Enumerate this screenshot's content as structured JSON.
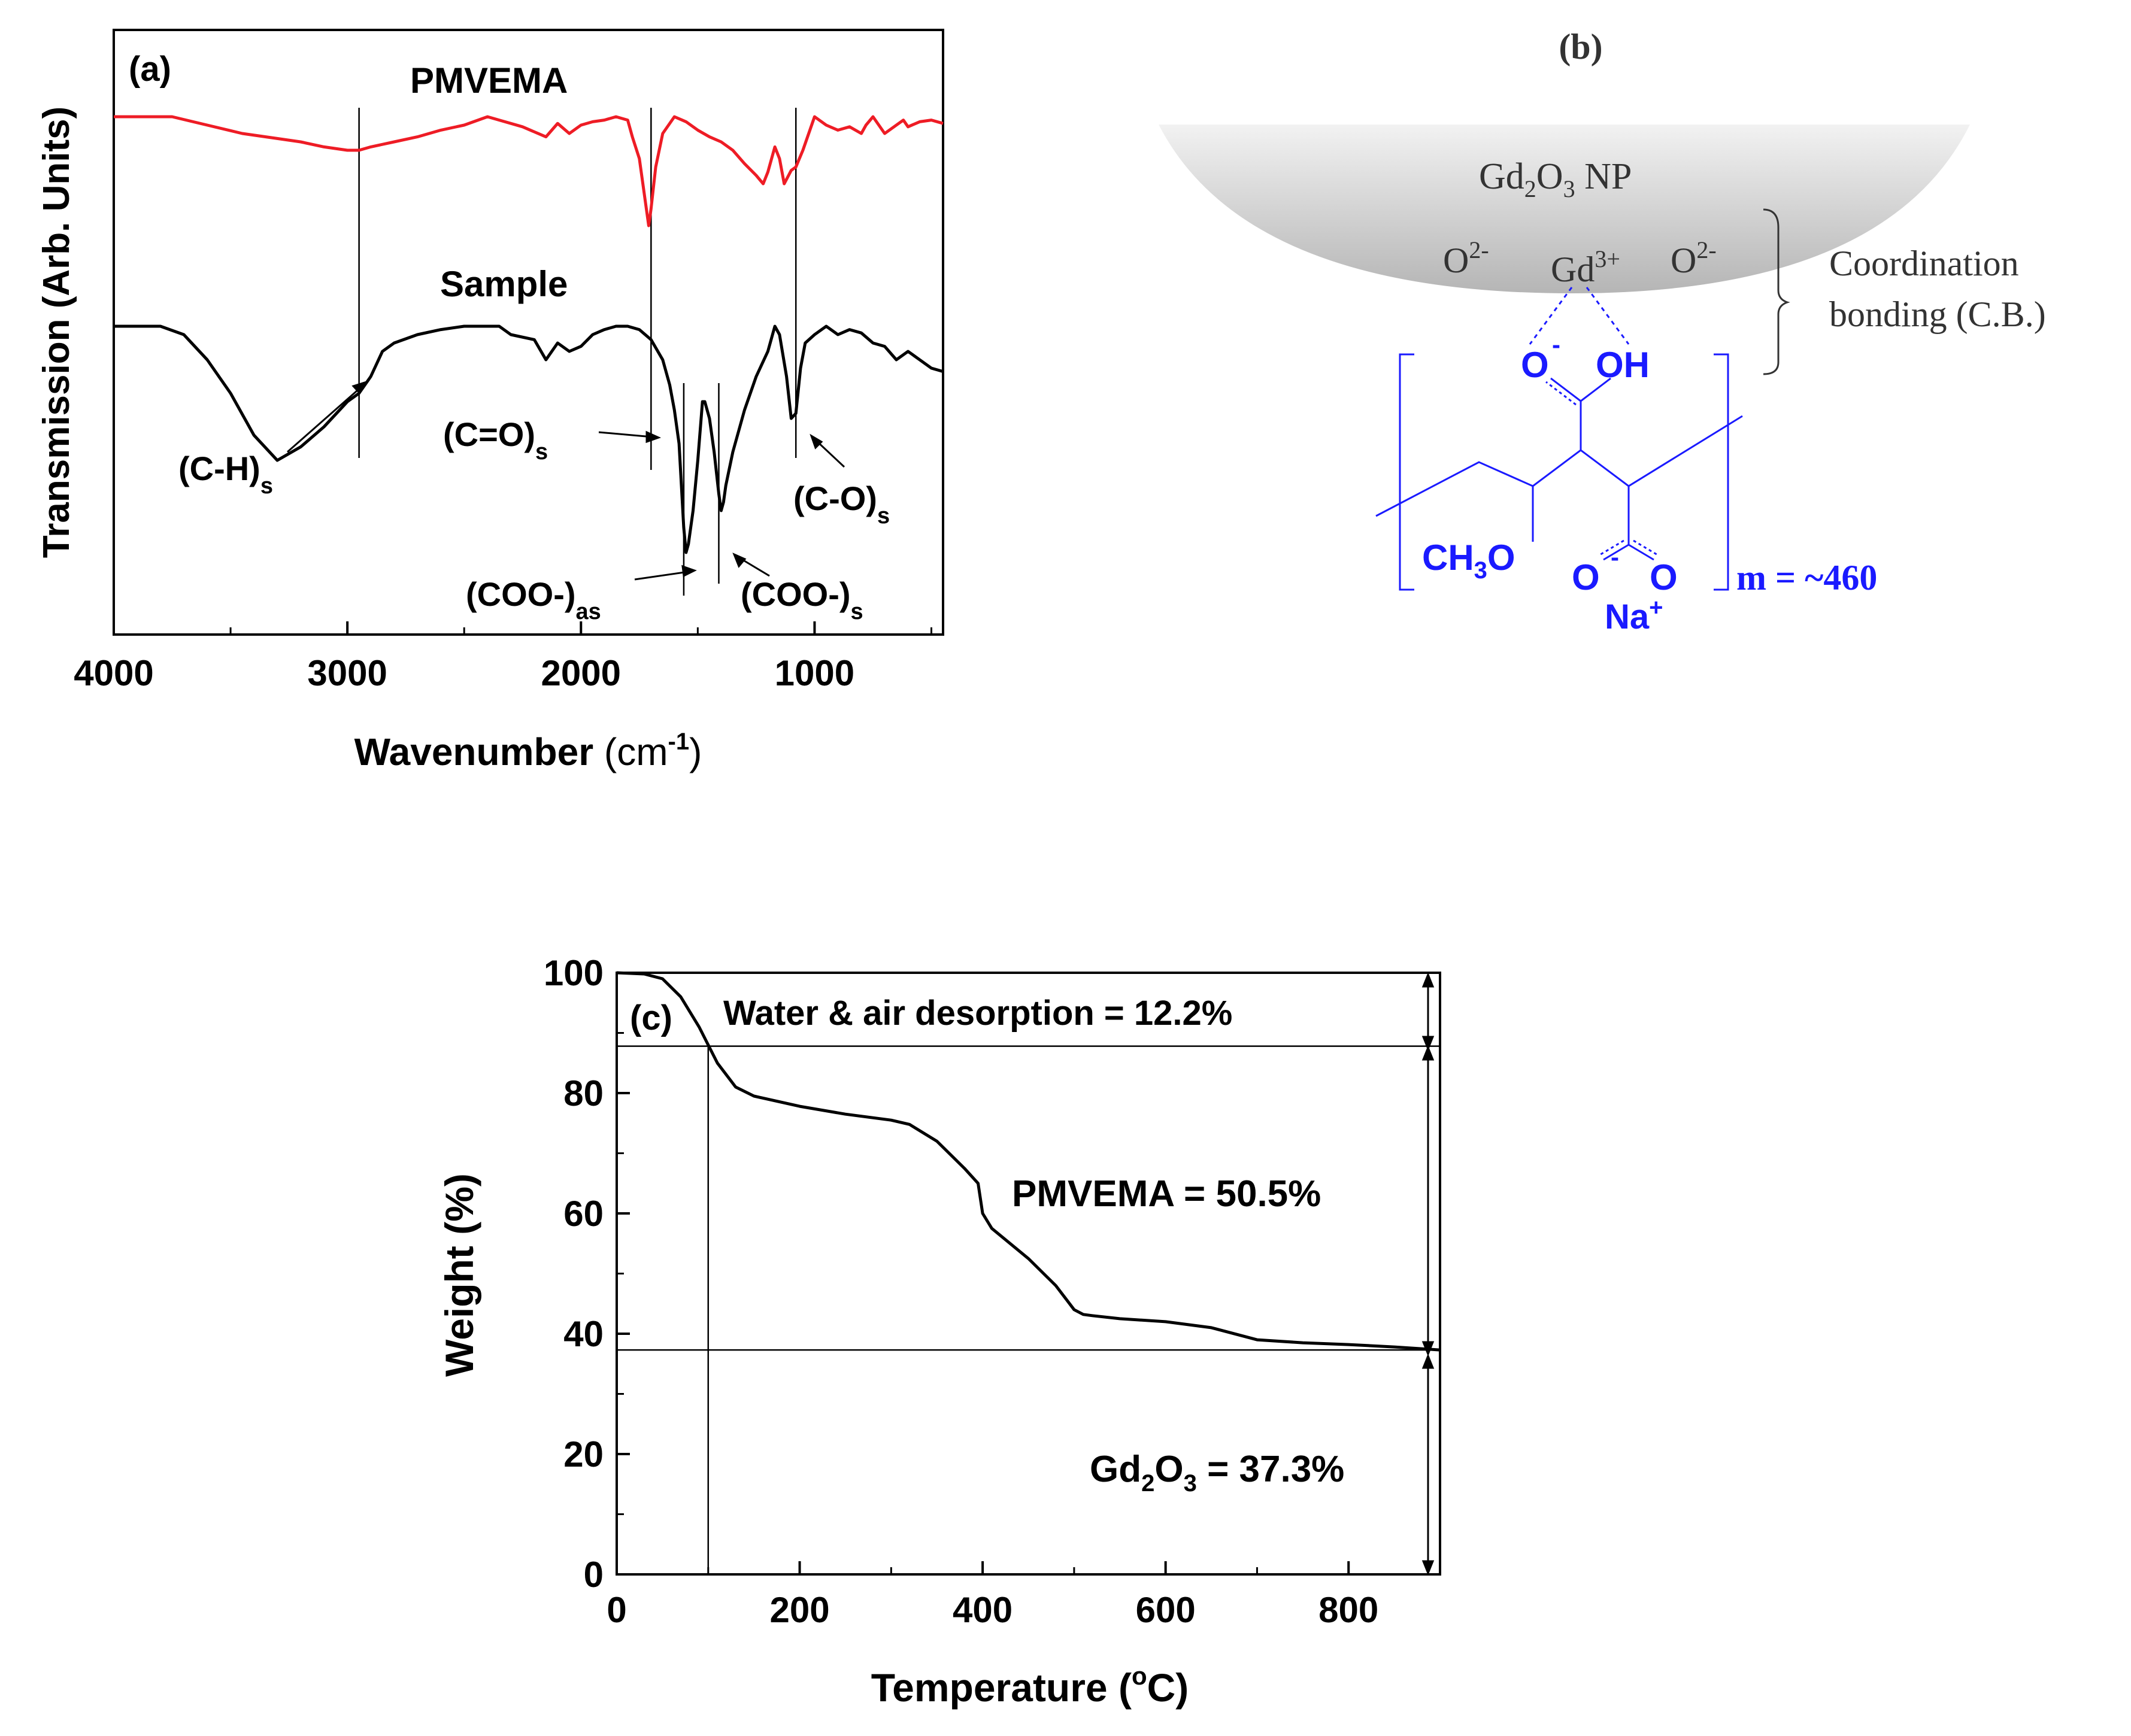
{
  "chart_data": [
    {
      "type": "line",
      "panel": "(a)",
      "xlabel": "Wavenumber",
      "xlabel_unit": "(cm",
      "xlabel_unit_sup": "-1",
      "xlabel_unit_close": ")",
      "ylabel": "Transmission (Arb. Units)",
      "xlim": [
        4000,
        450
      ],
      "xticks": [
        "4000",
        "3000",
        "2000",
        "1000"
      ],
      "xtick_values": [
        4000,
        3000,
        2000,
        1000
      ],
      "series": [
        {
          "name": "PMVEMA",
          "color": "#ee1c25",
          "x": [
            4000,
            3750,
            3600,
            3450,
            3300,
            3200,
            3100,
            3000,
            2950,
            2900,
            2800,
            2700,
            2600,
            2500,
            2400,
            2350,
            2250,
            2150,
            2100,
            2050,
            2000,
            1950,
            1900,
            1850,
            1800,
            1780,
            1750,
            1720,
            1710,
            1700,
            1680,
            1650,
            1600,
            1550,
            1500,
            1450,
            1400,
            1350,
            1300,
            1250,
            1220,
            1200,
            1170,
            1150,
            1130,
            1100,
            1080,
            1050,
            1000,
            950,
            900,
            850,
            800,
            780,
            750,
            700,
            650,
            620,
            600,
            550,
            500,
            450
          ],
          "y": [
            0.0,
            0.0,
            0.05,
            0.1,
            0.13,
            0.15,
            0.18,
            0.2,
            0.2,
            0.18,
            0.15,
            0.12,
            0.08,
            0.05,
            0.0,
            0.02,
            0.06,
            0.12,
            0.04,
            0.1,
            0.05,
            0.03,
            0.02,
            0.0,
            0.02,
            0.12,
            0.25,
            0.55,
            0.65,
            0.55,
            0.3,
            0.1,
            0.0,
            0.03,
            0.08,
            0.12,
            0.15,
            0.2,
            0.28,
            0.35,
            0.4,
            0.33,
            0.18,
            0.25,
            0.4,
            0.32,
            0.3,
            0.2,
            0.0,
            0.05,
            0.08,
            0.06,
            0.1,
            0.05,
            0.0,
            0.1,
            0.05,
            0.02,
            0.06,
            0.03,
            0.02,
            0.04
          ]
        },
        {
          "name": "Sample",
          "color": "#000000",
          "x": [
            4000,
            3800,
            3700,
            3600,
            3500,
            3400,
            3300,
            3200,
            3100,
            3000,
            2950,
            2900,
            2850,
            2800,
            2700,
            2600,
            2500,
            2400,
            2350,
            2300,
            2200,
            2150,
            2100,
            2050,
            2000,
            1950,
            1900,
            1850,
            1800,
            1750,
            1700,
            1650,
            1620,
            1600,
            1580,
            1560,
            1550,
            1540,
            1520,
            1500,
            1480,
            1470,
            1450,
            1430,
            1410,
            1400,
            1390,
            1380,
            1350,
            1300,
            1250,
            1200,
            1170,
            1150,
            1120,
            1100,
            1080,
            1060,
            1040,
            1000,
            950,
            900,
            850,
            800,
            750,
            700,
            650,
            600,
            550,
            500,
            450
          ],
          "y": [
            0.0,
            0.0,
            0.05,
            0.2,
            0.4,
            0.65,
            0.8,
            0.72,
            0.6,
            0.45,
            0.4,
            0.3,
            0.15,
            0.1,
            0.05,
            0.02,
            0.0,
            0.0,
            0.0,
            0.05,
            0.08,
            0.2,
            0.1,
            0.15,
            0.12,
            0.05,
            0.02,
            0.0,
            0.0,
            0.02,
            0.08,
            0.2,
            0.35,
            0.5,
            0.7,
            1.2,
            1.35,
            1.3,
            1.1,
            0.8,
            0.45,
            0.45,
            0.55,
            0.75,
            1.0,
            1.1,
            1.05,
            0.95,
            0.75,
            0.5,
            0.3,
            0.15,
            0.0,
            0.05,
            0.3,
            0.55,
            0.52,
            0.25,
            0.1,
            0.05,
            0.0,
            0.05,
            0.02,
            0.04,
            0.1,
            0.12,
            0.2,
            0.15,
            0.2,
            0.25,
            0.27
          ]
        }
      ],
      "vlines": [
        2950,
        1700,
        1560,
        1410,
        1080
      ],
      "annotations": [
        {
          "text": "(C-H)",
          "sub": "s"
        },
        {
          "text": "(C=O)",
          "sub": "s"
        },
        {
          "text": "(C-O)",
          "sub": "s"
        },
        {
          "text": "(COO-)",
          "sub": "as"
        },
        {
          "text": "(COO-)",
          "sub": "s"
        }
      ]
    },
    {
      "type": "line",
      "panel": "(c)",
      "xlabel": "Temperature (",
      "xlabel_sup": "o",
      "xlabel_end": "C)",
      "ylabel": "Weight (%)",
      "xlim": [
        0,
        900
      ],
      "ylim": [
        0,
        100
      ],
      "xticks": [
        "0",
        "200",
        "400",
        "600",
        "800"
      ],
      "xtick_values": [
        0,
        200,
        400,
        600,
        800
      ],
      "yticks": [
        "0",
        "20",
        "40",
        "60",
        "80",
        "100"
      ],
      "ytick_values": [
        0,
        20,
        40,
        60,
        80,
        100
      ],
      "series": [
        {
          "name": "TGA",
          "color": "#000000",
          "x": [
            0,
            30,
            50,
            70,
            90,
            100,
            110,
            130,
            150,
            200,
            250,
            300,
            320,
            350,
            380,
            395,
            400,
            410,
            450,
            480,
            500,
            510,
            520,
            550,
            600,
            650,
            700,
            750,
            800,
            850,
            900
          ],
          "y": [
            100,
            99.8,
            99,
            96,
            91,
            88,
            85,
            81,
            79.5,
            77.8,
            76.5,
            75.5,
            74.8,
            72,
            67.5,
            65,
            60,
            57.5,
            52.5,
            48,
            44,
            43.2,
            43,
            42.5,
            42,
            41,
            39,
            38.5,
            38.2,
            37.8,
            37.3
          ]
        }
      ],
      "hlines": [
        87.8,
        37.3
      ],
      "vline": 100,
      "annotations": {
        "water": "Water & air desorption = 12.2%",
        "pmvema": "PMVEMA = 50.5%",
        "gd2o3_pre": "Gd",
        "gd2o3_sub1": "2",
        "gd2o3_mid": "O",
        "gd2o3_sub2": "3",
        "gd2o3_post": " = 37.3%"
      }
    }
  ],
  "panel_b": {
    "label": "(b)",
    "np_label_pre": "Gd",
    "np_sub1": "2",
    "np_mid": "O",
    "np_sub2": "3",
    "np_post": " NP",
    "o_left": "O",
    "o_left_sup": "2-",
    "gd": "Gd",
    "gd_sup": "3+",
    "o_right": "O",
    "o_right_sup": "2-",
    "coord_line1": "Coordination",
    "coord_line2": "bonding (C.B.)",
    "atom_o": "O",
    "atom_minus": "-",
    "atom_oh": "OH",
    "ch3o_pre": "CH",
    "ch3o_sub": "3",
    "ch3o_post": "O",
    "atom_o2": "O",
    "atom_minus2": "-",
    "atom_o3": "O",
    "na": "Na",
    "na_sup": "+",
    "repeat": "m = ~460",
    "molecule_color": "#1a1aff"
  }
}
